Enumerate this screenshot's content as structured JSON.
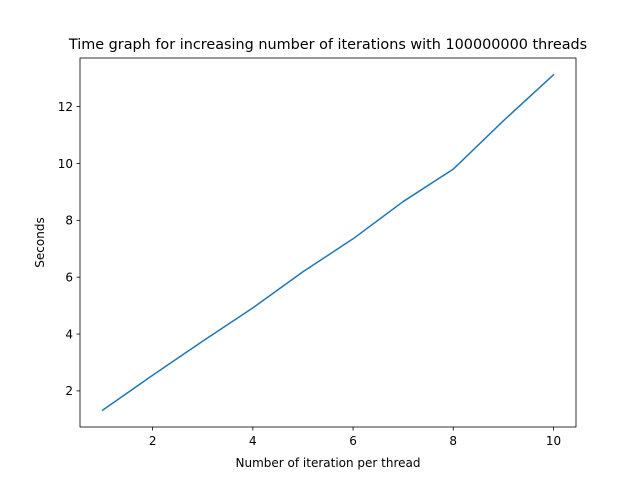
{
  "chart_data": {
    "type": "line",
    "title": "Time graph for increasing number of iterations with 100000000 threads",
    "xlabel": "Number of iteration per thread",
    "ylabel": "Seconds",
    "xlim": [
      0.55,
      10.45
    ],
    "ylim": [
      0.73,
      13.71
    ],
    "xticks": [
      2,
      4,
      6,
      8,
      10
    ],
    "yticks": [
      2,
      4,
      6,
      8,
      10,
      12
    ],
    "grid": false,
    "series": [
      {
        "color": "#1f77b4",
        "x": [
          1,
          2,
          3,
          4,
          5,
          6,
          7,
          8,
          9,
          10
        ],
        "y": [
          1.32,
          2.55,
          3.75,
          4.92,
          6.19,
          7.35,
          8.66,
          9.8,
          11.5,
          13.12
        ]
      }
    ]
  }
}
